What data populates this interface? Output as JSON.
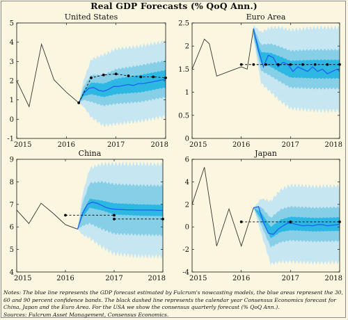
{
  "title": "Real GDP Forecasts (% QoQ Ann.)",
  "colors": {
    "history": "#333333",
    "forecast": "#1f5ff0",
    "band90": "#c6e6f2",
    "band60": "#86cfe6",
    "band30": "#2db8e3",
    "consensus": "#000000",
    "background": "#fbf6df"
  },
  "chart_data": [
    {
      "type": "line",
      "title": "United States",
      "xlim": [
        2015,
        2018
      ],
      "ylim": [
        -1,
        5
      ],
      "x_ticks": [
        2015,
        2016,
        2017,
        2018
      ],
      "y_ticks": [
        -1,
        0,
        1,
        2,
        3,
        4,
        5
      ],
      "series": [
        {
          "role": "history",
          "x": [
            2015.0,
            2015.25,
            2015.5,
            2015.75,
            2016.0,
            2016.25
          ],
          "y": [
            2.0,
            0.65,
            3.9,
            2.05,
            1.4,
            0.85
          ]
        },
        {
          "role": "forecast",
          "x": [
            2016.25,
            2016.35,
            2016.45,
            2016.55,
            2016.65,
            2016.75,
            2016.85,
            2016.95,
            2017.05,
            2017.15,
            2017.25,
            2017.35,
            2017.45,
            2017.55,
            2017.65,
            2017.75,
            2017.85,
            2017.95,
            2018.0
          ],
          "y": [
            0.85,
            1.35,
            1.6,
            1.65,
            1.5,
            1.45,
            1.55,
            1.7,
            1.7,
            1.75,
            1.8,
            1.75,
            1.85,
            1.85,
            1.9,
            1.95,
            2.0,
            2.05,
            2.1
          ]
        },
        {
          "role": "consensus",
          "x": [
            2016.25,
            2016.5,
            2016.75,
            2017.0,
            2017.25,
            2017.5,
            2017.75,
            2018.0
          ],
          "y": [
            0.85,
            2.15,
            2.3,
            2.35,
            2.25,
            2.2,
            2.2,
            2.15
          ]
        }
      ],
      "bands": {
        "x": [
          2016.25,
          2016.35,
          2016.5,
          2016.75,
          2017.0,
          2017.5,
          2018.0
        ],
        "center": [
          0.85,
          1.35,
          1.6,
          1.5,
          1.7,
          1.85,
          2.1
        ],
        "half_width_30": [
          0,
          0.15,
          0.3,
          0.35,
          0.4,
          0.45,
          0.45
        ],
        "half_width_60": [
          0,
          0.35,
          0.7,
          0.8,
          0.9,
          0.95,
          0.95
        ],
        "half_width_90": [
          0,
          0.7,
          1.5,
          1.85,
          1.95,
          1.95,
          1.95
        ]
      }
    },
    {
      "type": "line",
      "title": "Euro Area",
      "xlim": [
        2015,
        2018
      ],
      "ylim": [
        0,
        2.5
      ],
      "x_ticks": [
        2015,
        2016,
        2017,
        2018
      ],
      "y_ticks": [
        0,
        0.5,
        1,
        1.5,
        2,
        2.5
      ],
      "series": [
        {
          "role": "history",
          "x": [
            2015.0,
            2015.25,
            2015.35,
            2015.5,
            2015.75,
            2016.0,
            2016.12,
            2016.25
          ],
          "y": [
            1.5,
            2.15,
            2.05,
            1.35,
            1.45,
            1.55,
            1.5,
            2.38
          ]
        },
        {
          "role": "forecast",
          "x": [
            2016.25,
            2016.35,
            2016.45,
            2016.55,
            2016.65,
            2016.75,
            2016.85,
            2016.95,
            2017.05,
            2017.15,
            2017.25,
            2017.35,
            2017.45,
            2017.55,
            2017.65,
            2017.75,
            2017.85,
            2017.95,
            2018.0
          ],
          "y": [
            2.38,
            1.9,
            1.55,
            1.8,
            1.75,
            1.55,
            1.65,
            1.6,
            1.45,
            1.55,
            1.5,
            1.45,
            1.55,
            1.45,
            1.5,
            1.4,
            1.45,
            1.5,
            1.45
          ]
        },
        {
          "role": "consensus",
          "x": [
            2016.0,
            2016.25,
            2016.5,
            2016.75,
            2017.0,
            2017.25,
            2017.5,
            2017.75,
            2018.0
          ],
          "y": [
            1.6,
            1.6,
            1.6,
            1.6,
            1.6,
            1.6,
            1.6,
            1.6,
            1.6
          ]
        }
      ],
      "bands": {
        "x": [
          2016.25,
          2016.4,
          2016.6,
          2016.8,
          2017.0,
          2017.5,
          2018.0
        ],
        "center": [
          2.3,
          1.75,
          1.7,
          1.6,
          1.5,
          1.5,
          1.5
        ],
        "half_width_30": [
          0.05,
          0.12,
          0.15,
          0.17,
          0.18,
          0.2,
          0.2
        ],
        "half_width_60": [
          0.1,
          0.28,
          0.35,
          0.38,
          0.4,
          0.42,
          0.42
        ],
        "half_width_90": [
          0.15,
          0.55,
          0.7,
          0.8,
          0.85,
          0.9,
          0.9
        ]
      }
    },
    {
      "type": "line",
      "title": "China",
      "xlim": [
        2015,
        2018
      ],
      "ylim": [
        4,
        9
      ],
      "x_ticks": [
        2015,
        2016,
        2017,
        2018
      ],
      "y_ticks": [
        4,
        5,
        6,
        7,
        8,
        9
      ],
      "series": [
        {
          "role": "history",
          "x": [
            2015.0,
            2015.25,
            2015.5,
            2015.75,
            2016.0,
            2016.25
          ],
          "y": [
            6.75,
            6.15,
            7.05,
            6.6,
            6.1,
            5.9
          ]
        },
        {
          "role": "forecast",
          "x": [
            2016.25,
            2016.35,
            2016.45,
            2016.55,
            2016.65,
            2016.75,
            2016.85,
            2016.95,
            2017.05,
            2017.25,
            2017.5,
            2017.75,
            2018.0
          ],
          "y": [
            5.9,
            6.6,
            7.0,
            7.1,
            7.05,
            6.95,
            6.85,
            6.8,
            6.78,
            6.76,
            6.75,
            6.75,
            6.73
          ]
        },
        {
          "role": "consensus",
          "x": [
            2016.0,
            2017.0
          ],
          "y": [
            6.52,
            6.52
          ]
        },
        {
          "role": "consensus",
          "x": [
            2017.0,
            2018.0
          ],
          "y": [
            6.35,
            6.35
          ]
        }
      ],
      "bands": {
        "x": [
          2016.25,
          2016.35,
          2016.5,
          2016.75,
          2017.0,
          2017.5,
          2018.0
        ],
        "center": [
          5.9,
          6.55,
          7.05,
          6.95,
          6.8,
          6.75,
          6.73
        ],
        "half_width_30": [
          0,
          0.12,
          0.2,
          0.22,
          0.25,
          0.25,
          0.25
        ],
        "half_width_60": [
          0,
          0.5,
          0.9,
          1.05,
          1.1,
          1.1,
          1.1
        ],
        "half_width_90": [
          0,
          0.9,
          1.55,
          1.85,
          2.0,
          2.05,
          2.05
        ]
      }
    },
    {
      "type": "line",
      "title": "Japan",
      "xlim": [
        2015,
        2018
      ],
      "ylim": [
        -4,
        6
      ],
      "x_ticks": [
        2015,
        2016,
        2017,
        2018
      ],
      "y_ticks": [
        -4,
        -2,
        0,
        2,
        4,
        6
      ],
      "series": [
        {
          "role": "history",
          "x": [
            2015.0,
            2015.25,
            2015.5,
            2015.75,
            2016.0,
            2016.25
          ],
          "y": [
            2.0,
            5.3,
            -1.7,
            1.6,
            -1.7,
            1.7
          ]
        },
        {
          "role": "forecast",
          "x": [
            2016.25,
            2016.35,
            2016.45,
            2016.55,
            2016.65,
            2016.75,
            2016.85,
            2016.95,
            2017.05,
            2017.15,
            2017.25,
            2017.35,
            2017.45,
            2017.55,
            2017.65,
            2017.75,
            2017.85,
            2017.95,
            2018.0
          ],
          "y": [
            1.7,
            1.8,
            0.4,
            -0.55,
            -0.65,
            -0.2,
            0.1,
            0.35,
            0.3,
            0.2,
            0.1,
            0.15,
            0.1,
            0.2,
            0.2,
            0.1,
            0.15,
            0.2,
            0.25
          ]
        },
        {
          "role": "consensus",
          "x": [
            2016.0,
            2017.0,
            2018.0
          ],
          "y": [
            0.45,
            0.45,
            0.45
          ]
        }
      ],
      "bands": {
        "x": [
          2016.25,
          2016.4,
          2016.6,
          2016.8,
          2017.0,
          2017.5,
          2018.0
        ],
        "center": [
          1.7,
          1.0,
          -0.5,
          0.1,
          0.3,
          0.2,
          0.25
        ],
        "half_width_30": [
          0,
          0.3,
          0.5,
          0.55,
          0.6,
          0.6,
          0.6
        ],
        "half_width_60": [
          0,
          0.8,
          1.3,
          1.45,
          1.5,
          1.5,
          1.5
        ],
        "half_width_90": [
          0,
          1.5,
          2.8,
          3.2,
          3.4,
          3.4,
          3.4
        ]
      }
    }
  ],
  "notes": "Notes: The blue line represents the GDP forecast estimated by Fulcrum's nowcasting models, the blue areas represent the 30, 60 and 90 percent confidence bands. The black dashed line represents the calendar year Consensus Economics forecast for China, Japan and the Euro Area. For the USA we show the consensus quarterly forecast (% QoQ Ann.).",
  "sources": "Sources: Fulcrum Asset Management, Consensus Economics."
}
